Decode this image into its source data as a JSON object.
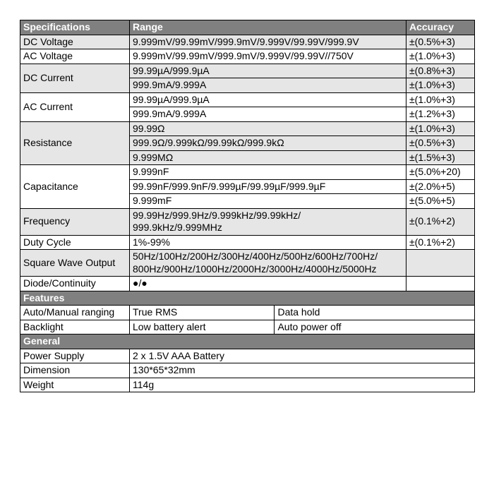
{
  "headers": {
    "spec": "Specifications",
    "range": "Range",
    "acc": "Accuracy"
  },
  "specs": [
    {
      "label": "DC Voltage",
      "shade": true,
      "rows": [
        {
          "range": "9.999mV/99.99mV/999.9mV/9.999V/99.99V/999.9V",
          "acc": "±(0.5%+3)"
        }
      ]
    },
    {
      "label": "AC Voltage",
      "shade": false,
      "rows": [
        {
          "range": "9.999mV/99.99mV/999.9mV/9.999V/99.99V//750V",
          "acc": "±(1.0%+3)"
        }
      ]
    },
    {
      "label": "DC Current",
      "shade": true,
      "rows": [
        {
          "range": "99.99µA/999.9µA",
          "acc": "±(0.8%+3)"
        },
        {
          "range": "999.9mA/9.999A",
          "acc": "±(1.0%+3)"
        }
      ]
    },
    {
      "label": "AC Current",
      "shade": false,
      "rows": [
        {
          "range": "99.99µA/999.9µA",
          "acc": "±(1.0%+3)"
        },
        {
          "range": "999.9mA/9.999A",
          "acc": "±(1.2%+3)"
        }
      ]
    },
    {
      "label": "Resistance",
      "shade": true,
      "rows": [
        {
          "range": "99.99Ω",
          "acc": "±(1.0%+3)"
        },
        {
          "range": "999.9Ω/9.999kΩ/99.99kΩ/999.9kΩ",
          "acc": "±(0.5%+3)"
        },
        {
          "range": "9.999MΩ",
          "acc": "±(1.5%+3)"
        }
      ]
    },
    {
      "label": "Capacitance",
      "shade": false,
      "rows": [
        {
          "range": "9.999nF",
          "acc": "±(5.0%+20)"
        },
        {
          "range": "99.99nF/999.9nF/9.999µF/99.99µF/999.9µF",
          "acc": "±(2.0%+5)"
        },
        {
          "range": "9.999mF",
          "acc": "±(5.0%+5)"
        }
      ]
    },
    {
      "label": "Frequency",
      "shade": true,
      "rows": [
        {
          "range": "99.99Hz/999.9Hz/9.999kHz/99.99kHz/\n999.9kHz/9.999MHz",
          "acc": "±(0.1%+2)"
        }
      ]
    },
    {
      "label": "Duty Cycle",
      "shade": false,
      "rows": [
        {
          "range": "1%-99%",
          "acc": "±(0.1%+2)"
        }
      ]
    },
    {
      "label": "Square Wave Output",
      "shade": true,
      "rows": [
        {
          "range": "50Hz/100Hz/200Hz/300Hz/400Hz/500Hz/600Hz/700Hz/\n800Hz/900Hz/1000Hz/2000Hz/3000Hz/4000Hz/5000Hz",
          "acc": ""
        }
      ]
    },
    {
      "label": "Diode/Continuity",
      "shade": false,
      "rows": [
        {
          "range": "●/●",
          "acc": ""
        }
      ]
    }
  ],
  "featuresHeader": "Features",
  "features": [
    [
      "Auto/Manual ranging",
      "True RMS",
      "Data hold"
    ],
    [
      "Backlight",
      "Low battery alert",
      "Auto power off"
    ]
  ],
  "generalHeader": "General",
  "general": [
    [
      "Power Supply",
      "2 x 1.5V AAA Battery"
    ],
    [
      "Dimension",
      "130*65*32mm"
    ],
    [
      "Weight",
      "114g"
    ]
  ],
  "colors": {
    "headerBg": "#808080",
    "headerFg": "#ffffff",
    "shadeBg": "#e6e6e6",
    "border": "#000000"
  }
}
